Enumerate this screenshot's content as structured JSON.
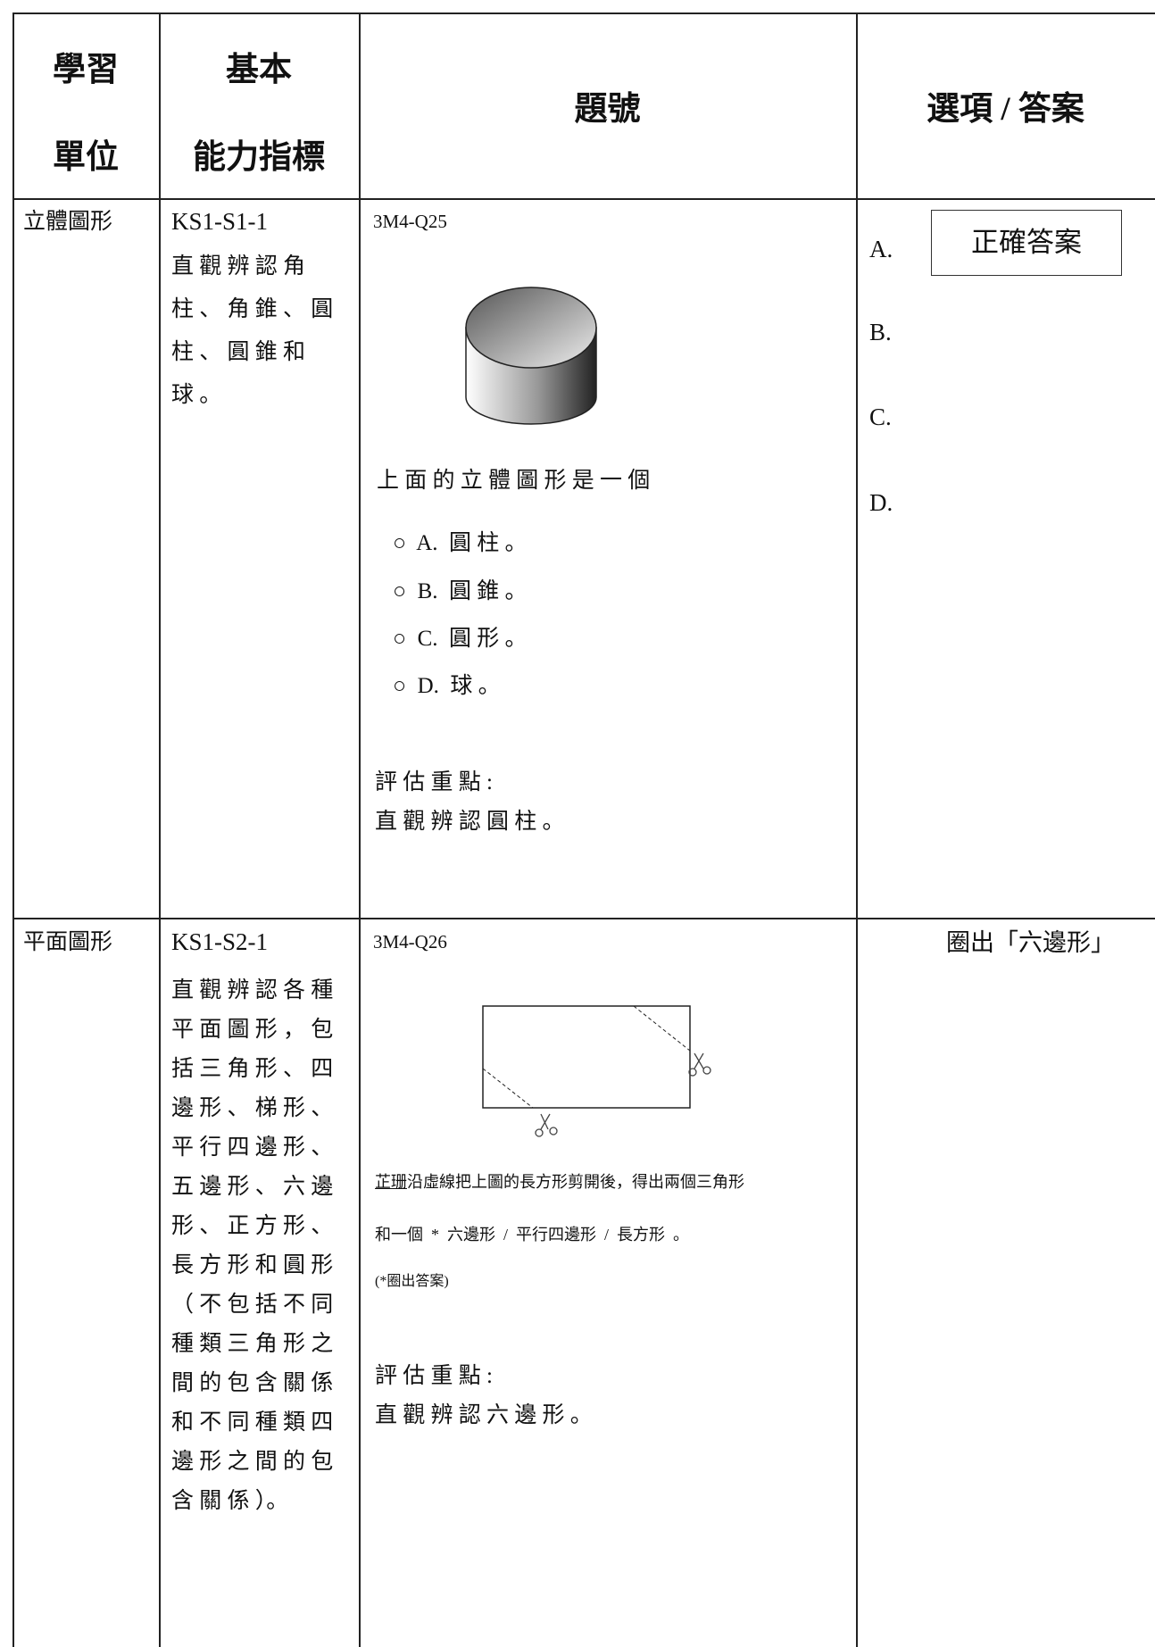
{
  "header": [
    [
      "學習",
      "單位"
    ],
    [
      "基本",
      "能力指標"
    ],
    [
      "題號"
    ],
    [
      "選項 / 答案"
    ]
  ],
  "rows": [
    {
      "unit": "立體圖形",
      "code": "KS1-S1-1",
      "indicator": [
        "直 觀 辨 認 角",
        "柱 、 角 錐 、 圓",
        "柱 、 圓 錐 和",
        "球 。"
      ],
      "question": {
        "id": "3M4-Q25",
        "stem": "上 面 的 立 體 圖 形 是 一 個",
        "options": [
          "○  A.  圓 柱 。",
          "○  B.  圓 錐 。",
          "○  C.  圓 形 。",
          "○  D.  球 。"
        ],
        "focus_label": "評 估 重 點 :",
        "focus": "直 觀 辨 認 圓 柱 。"
      },
      "answer": {
        "choices": [
          "A.",
          "B.",
          "C.",
          "D."
        ],
        "correct": "正確答案"
      }
    },
    {
      "unit": "平面圖形",
      "code": "KS1-S2-1",
      "indicator": [
        "直 觀 辨 認 各 種",
        "平 面 圖 形 ， 包",
        "括 三 角 形 、 四",
        "邊 形 、 梯 形 、",
        "平 行 四 邊 形 、",
        "五 邊 形 、 六 邊",
        "形 、 正 方 形 、",
        "長 方 形 和 圓 形",
        "（ 不 包 括 不 同",
        "種 類 三 角 形 之",
        "間 的 包 含 關 係",
        "和 不 同 種 類 四",
        "邊 形 之 間 的 包",
        "含 關 係 ）。"
      ],
      "question": {
        "id": "3M4-Q26",
        "name": "芷珊",
        "stem": "沿虛線把上圖的長方形剪開後，得出兩個三角形",
        "stem2": "和一個  *  六邊形  /  平行四邊形  /  長方形  。",
        "note": "(*圈出答案)",
        "focus_label": "評 估 重 點 :",
        "focus": "直 觀 辨 認 六 邊 形 。"
      },
      "answer": {
        "text": "圈出「六邊形」"
      }
    }
  ]
}
